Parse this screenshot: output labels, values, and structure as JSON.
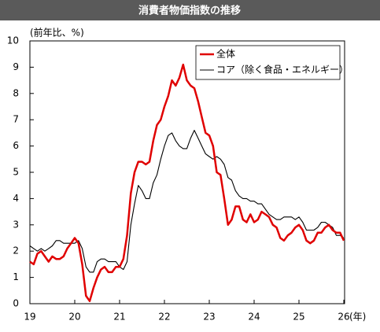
{
  "chart_data": {
    "type": "line",
    "title": "消費者物価指数の推移",
    "y_label": "(前年比、%)",
    "x_label": "(年)",
    "categories": [
      "19",
      null,
      null,
      null,
      null,
      null,
      null,
      null,
      null,
      null,
      null,
      null,
      "20",
      null,
      null,
      null,
      null,
      null,
      null,
      null,
      null,
      null,
      null,
      null,
      "21",
      null,
      null,
      null,
      null,
      null,
      null,
      null,
      null,
      null,
      null,
      null,
      "22",
      null,
      null,
      null,
      null,
      null,
      null,
      null,
      null,
      null,
      null,
      null,
      "23",
      null,
      null,
      null,
      null,
      null,
      null,
      null,
      null,
      null,
      null,
      null,
      "24",
      null,
      null,
      null,
      null,
      null,
      null,
      null,
      null,
      null,
      null,
      null,
      "25",
      null,
      null,
      null,
      null,
      null,
      null,
      null,
      null,
      null,
      null,
      null,
      "26"
    ],
    "series": [
      {
        "name": "全体",
        "color": "#e00000",
        "values": [
          1.6,
          1.5,
          1.9,
          2.0,
          1.8,
          1.6,
          1.8,
          1.7,
          1.7,
          1.8,
          2.1,
          2.3,
          2.5,
          2.3,
          1.5,
          0.3,
          0.1,
          0.6,
          1.0,
          1.3,
          1.4,
          1.2,
          1.2,
          1.4,
          1.4,
          1.7,
          2.6,
          4.2,
          5.0,
          5.4,
          5.4,
          5.3,
          5.4,
          6.2,
          6.8,
          7.0,
          7.5,
          7.9,
          8.5,
          8.3,
          8.6,
          9.1,
          8.5,
          8.3,
          8.2,
          7.7,
          7.1,
          6.5,
          6.4,
          6.0,
          5.0,
          4.9,
          4.0,
          3.0,
          3.2,
          3.7,
          3.7,
          3.2,
          3.1,
          3.4,
          3.1,
          3.2,
          3.5,
          3.4,
          3.3,
          3.0,
          2.9,
          2.5,
          2.4,
          2.6,
          2.7,
          2.9,
          3.0,
          2.8,
          2.4,
          2.3,
          2.4,
          2.7,
          2.7,
          2.9,
          3.0,
          2.8,
          2.7,
          2.7,
          2.4
        ]
      },
      {
        "name": "コア（除く食品・エネルギー）",
        "color": "#000000",
        "values": [
          2.2,
          2.1,
          2.0,
          2.1,
          2.0,
          2.1,
          2.2,
          2.4,
          2.4,
          2.3,
          2.3,
          2.3,
          2.3,
          2.4,
          2.1,
          1.4,
          1.2,
          1.2,
          1.6,
          1.7,
          1.7,
          1.6,
          1.6,
          1.6,
          1.4,
          1.3,
          1.6,
          3.0,
          3.8,
          4.5,
          4.3,
          4.0,
          4.0,
          4.6,
          4.9,
          5.5,
          6.0,
          6.4,
          6.5,
          6.2,
          6.0,
          5.9,
          5.9,
          6.3,
          6.6,
          6.3,
          6.0,
          5.7,
          5.6,
          5.5,
          5.6,
          5.5,
          5.3,
          4.8,
          4.7,
          4.3,
          4.1,
          4.0,
          4.0,
          3.9,
          3.9,
          3.8,
          3.8,
          3.6,
          3.4,
          3.3,
          3.2,
          3.2,
          3.3,
          3.3,
          3.3,
          3.2,
          3.3,
          3.1,
          2.8,
          2.8,
          2.8,
          2.9,
          3.1,
          3.1,
          3.0,
          2.9,
          2.6,
          2.6,
          2.5
        ]
      }
    ],
    "ylim": [
      0,
      10
    ],
    "yticks": [
      0,
      1,
      2,
      3,
      4,
      5,
      6,
      7,
      8,
      9,
      10
    ],
    "grid": false
  }
}
